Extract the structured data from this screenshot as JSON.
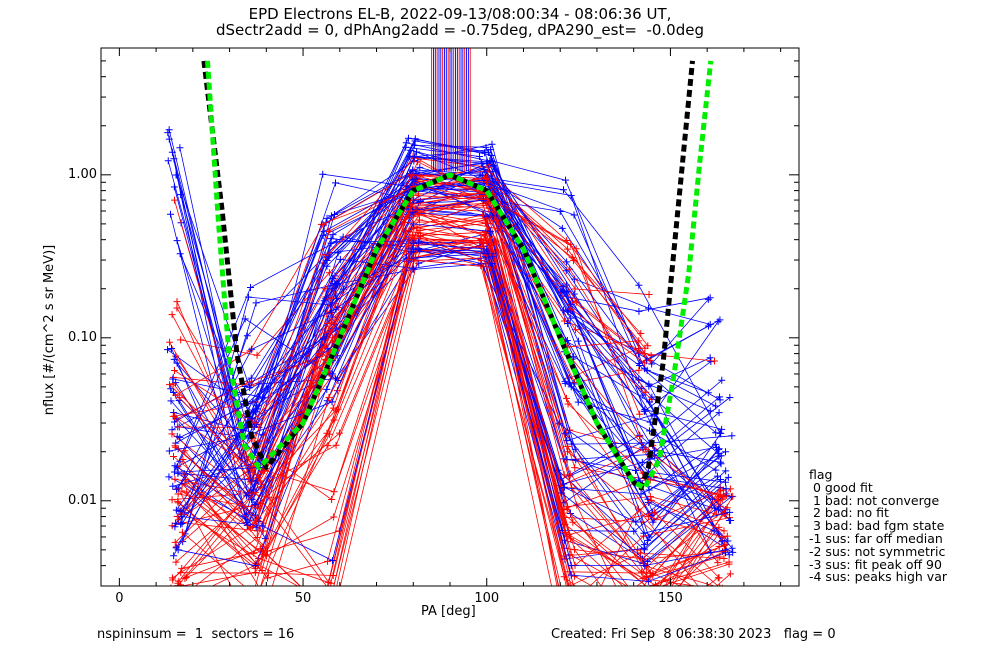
{
  "chart_data": {
    "type": "line",
    "title": "EPD Electrons EL-B, 2022-09-13/08:00:34 - 08:06:36 UT,",
    "subtitle": "dSectr2add = 0, dPhAng2add = -0.75deg, dPA290_est=  -0.0deg",
    "xlabel": "PA [deg]",
    "ylabel": "nflux [#/(cm^2 s sr MeV)]",
    "xlim": [
      -5,
      185
    ],
    "ylim": [
      0.003,
      6.0
    ],
    "y_scale": "log",
    "x_ticks": [
      0,
      50,
      100,
      150
    ],
    "x_tick_labels": [
      "0",
      "50",
      "100",
      "150"
    ],
    "y_ticks": [
      0.01,
      0.1,
      1.0
    ],
    "y_tick_labels": [
      "0.01",
      "0.10",
      "1.00"
    ],
    "grid": false,
    "colors": {
      "red_spectra": "#ff0000",
      "blue_spectra": "#0000ff",
      "fit_black": "#000000",
      "fit_green": "#00ee00"
    },
    "representative_series": [
      {
        "color": "red",
        "x": [
          15,
          35,
          57,
          80,
          100,
          122,
          143,
          162
        ],
        "y": [
          0.7,
          0.018,
          0.45,
          0.85,
          0.95,
          0.35,
          0.08,
          0.072
        ]
      },
      {
        "color": "red",
        "x": [
          15,
          37,
          56,
          80,
          100,
          123,
          143
        ],
        "y": [
          0.063,
          0.03,
          0.2,
          1.0,
          0.9,
          0.15,
          0.07
        ]
      },
      {
        "color": "red",
        "x": [
          15,
          36,
          58,
          80,
          101,
          122,
          144,
          163
        ],
        "y": [
          0.033,
          0.016,
          0.1,
          0.75,
          0.7,
          0.08,
          0.02,
          0.01
        ]
      },
      {
        "color": "red",
        "x": [
          16,
          38,
          58,
          79,
          100,
          122,
          144,
          164
        ],
        "y": [
          0.011,
          0.009,
          0.08,
          0.6,
          0.65,
          0.02,
          0.008,
          0.006
        ]
      },
      {
        "color": "blue",
        "x": [
          16,
          38,
          58,
          79,
          100,
          123,
          144,
          165
        ],
        "y": [
          0.015,
          0.016,
          0.23,
          1.3,
          1.2,
          0.05,
          0.015,
          0.013
        ]
      },
      {
        "color": "blue",
        "x": [
          16,
          37,
          58,
          80,
          101,
          123,
          143,
          165
        ],
        "y": [
          0.005,
          0.004,
          0.06,
          0.5,
          0.45,
          0.004,
          0.004,
          0.005
        ]
      },
      {
        "color": "blue",
        "x": [
          16,
          36,
          59,
          80,
          100,
          121,
          142,
          165
        ],
        "y": [
          0.012,
          0.085,
          0.15,
          0.35,
          0.34,
          0.012,
          0.011,
          0.02
        ]
      },
      {
        "color": "blue",
        "x": [
          17,
          39,
          58,
          80,
          100,
          123,
          144,
          165
        ],
        "y": [
          0.008,
          0.007,
          0.0043,
          0.38,
          0.35,
          0.0035,
          0.0032,
          0.0048
        ]
      }
    ],
    "fit_curves": [
      {
        "name": "black",
        "x": [
          23,
          28,
          32,
          36,
          40,
          50,
          60,
          70,
          80,
          90,
          100,
          110,
          120,
          130,
          140,
          142,
          144,
          148,
          152,
          156
        ],
        "y": [
          5.0,
          0.6,
          0.08,
          0.025,
          0.016,
          0.03,
          0.1,
          0.35,
          0.8,
          1.0,
          0.8,
          0.35,
          0.1,
          0.03,
          0.013,
          0.012,
          0.016,
          0.07,
          0.6,
          5.0
        ]
      },
      {
        "name": "green",
        "x": [
          24,
          27,
          30,
          34,
          38,
          50,
          60,
          70,
          80,
          90,
          100,
          110,
          120,
          130,
          140,
          143,
          147,
          151,
          155,
          158,
          161
        ],
        "y": [
          5.0,
          0.5,
          0.07,
          0.022,
          0.016,
          0.03,
          0.1,
          0.35,
          0.8,
          1.0,
          0.8,
          0.35,
          0.1,
          0.03,
          0.013,
          0.012,
          0.018,
          0.06,
          0.25,
          1.2,
          5.0
        ]
      }
    ]
  },
  "legend": {
    "heading": "flag",
    "items": [
      " 0 good fit",
      " 1 bad: not converge",
      " 2 bad: no fit",
      " 3 bad: bad fgm state",
      "-1 sus: far off median",
      "-2 sus: not symmetric",
      "-3 sus: fit peak off 90",
      "-4 sus: peaks high var"
    ]
  },
  "footer": {
    "left": "nspininsum =  1  sectors = 16",
    "right": "Created: Fri Sep  8 06:38:30 2023   flag = 0"
  }
}
